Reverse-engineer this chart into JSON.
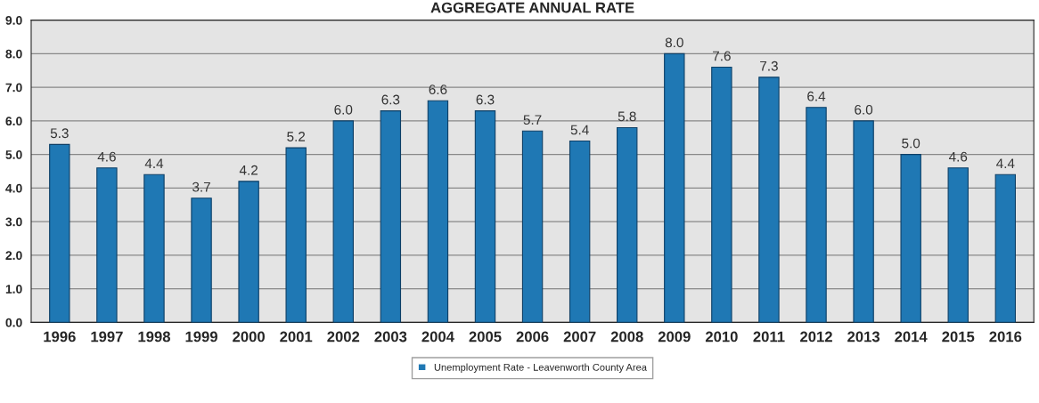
{
  "chart_data": {
    "type": "bar",
    "title": "AGGREGATE ANNUAL RATE",
    "categories": [
      "1996",
      "1997",
      "1998",
      "1999",
      "2000",
      "2001",
      "2002",
      "2003",
      "2004",
      "2005",
      "2006",
      "2007",
      "2008",
      "2009",
      "2010",
      "2011",
      "2012",
      "2013",
      "2014",
      "2015",
      "2016"
    ],
    "series": [
      {
        "name": "Unemployment Rate - Leavenworth County Area",
        "color": "#1f78b4",
        "values": [
          5.3,
          4.6,
          4.4,
          3.7,
          4.2,
          5.2,
          6.0,
          6.3,
          6.6,
          6.3,
          5.7,
          5.4,
          5.8,
          8.0,
          7.6,
          7.3,
          6.4,
          6.0,
          5.0,
          4.6,
          4.4
        ]
      }
    ],
    "value_labels": [
      "5.3",
      "4.6",
      "4.4",
      "3.7",
      "4.2",
      "5.2",
      "6.0",
      "6.3",
      "6.6",
      "6.3",
      "5.7",
      "5.4",
      "5.8",
      "8.0",
      "7.6",
      "7.3",
      "6.4",
      "6.0",
      "5.0",
      "4.6",
      "4.4"
    ],
    "ylim": [
      0,
      9
    ],
    "yticks": [
      {
        "value": 0,
        "label": "0.0"
      },
      {
        "value": 1,
        "label": "1.0"
      },
      {
        "value": 2,
        "label": "2.0"
      },
      {
        "value": 3,
        "label": "3.0"
      },
      {
        "value": 4,
        "label": "4.0"
      },
      {
        "value": 5,
        "label": "5.0"
      },
      {
        "value": 6,
        "label": "6.0"
      },
      {
        "value": 7,
        "label": "7.0"
      },
      {
        "value": 8,
        "label": "8.0"
      },
      {
        "value": 9,
        "label": "9.0"
      }
    ],
    "grid": "y",
    "legend": "bottom"
  }
}
